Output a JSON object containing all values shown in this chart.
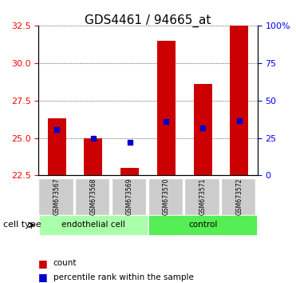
{
  "title": "GDS4461 / 94665_at",
  "samples": [
    "GSM673567",
    "GSM673568",
    "GSM673569",
    "GSM673570",
    "GSM673571",
    "GSM673572"
  ],
  "bar_tops": [
    26.3,
    25.0,
    23.0,
    31.5,
    28.6,
    32.5
  ],
  "bar_bottom": 22.5,
  "percentile_values": [
    25.55,
    25.0,
    24.72,
    26.08,
    25.65,
    26.15
  ],
  "ylim": [
    22.5,
    32.5
  ],
  "yticks": [
    22.5,
    25.0,
    27.5,
    30.0,
    32.5
  ],
  "right_yticks": [
    0,
    25,
    50,
    75,
    100
  ],
  "right_ylim": [
    0,
    100
  ],
  "bar_color": "#cc0000",
  "dot_color": "#0000cc",
  "bar_width": 0.5,
  "groups": [
    {
      "label": "endothelial cell",
      "start": 0,
      "end": 2,
      "color": "#aaffaa"
    },
    {
      "label": "control",
      "start": 3,
      "end": 5,
      "color": "#55ee55"
    }
  ],
  "cell_type_label": "cell type",
  "legend_items": [
    {
      "label": "count",
      "color": "#cc0000",
      "marker": "s"
    },
    {
      "label": "percentile rank within the sample",
      "color": "#0000cc",
      "marker": "s"
    }
  ],
  "grid_color": "black",
  "bg_plot": "white",
  "bg_label_row": "#cccccc"
}
